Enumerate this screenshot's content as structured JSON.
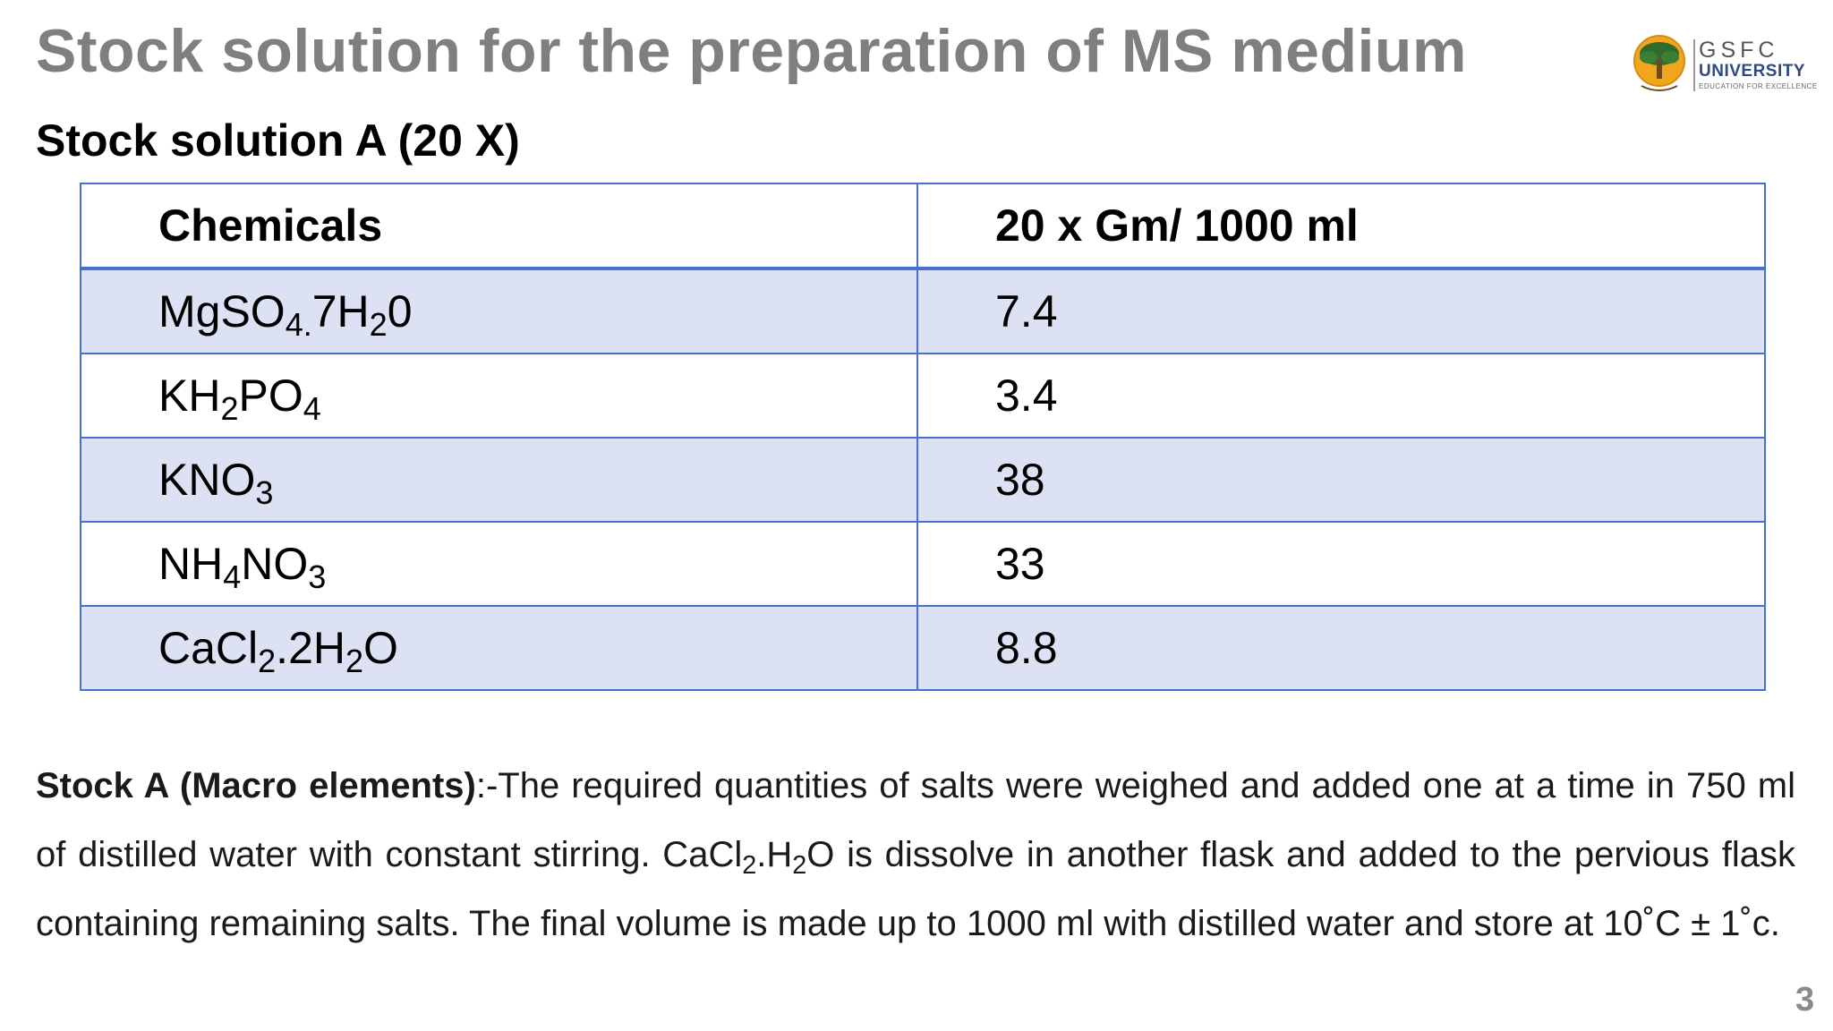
{
  "title": "Stock solution for the preparation of MS medium",
  "logo": {
    "name": "GSFC",
    "sub": "UNIVERSITY",
    "tagline": "EDUCATION FOR EXCELLENCE",
    "colors": {
      "sun": "#f0a71f",
      "tree": "#2f6b2a",
      "text": "#2e4a80"
    }
  },
  "subtitle": "Stock solution A (20 X)",
  "table": {
    "headers": [
      "Chemicals",
      "20 x Gm/ 1000 ml"
    ],
    "rows": [
      {
        "chemical": {
          "parts": [
            [
              "MgSO",
              ""
            ],
            [
              "4.",
              "sub"
            ],
            [
              "7H",
              ""
            ],
            [
              "2",
              "sub"
            ],
            [
              "0",
              ""
            ]
          ]
        },
        "value": "7.4"
      },
      {
        "chemical": {
          "parts": [
            [
              "KH",
              ""
            ],
            [
              "2",
              "sub"
            ],
            [
              "PO",
              ""
            ],
            [
              "4",
              "sub"
            ]
          ]
        },
        "value": "3.4"
      },
      {
        "chemical": {
          "parts": [
            [
              "KNO",
              ""
            ],
            [
              "3",
              "sub"
            ]
          ]
        },
        "value": "38"
      },
      {
        "chemical": {
          "parts": [
            [
              "NH",
              ""
            ],
            [
              "4",
              "sub"
            ],
            [
              "NO",
              ""
            ],
            [
              "3",
              "sub"
            ]
          ]
        },
        "value": "33"
      },
      {
        "chemical": {
          "parts": [
            [
              "CaCl",
              ""
            ],
            [
              "2",
              "sub"
            ],
            [
              ".2H",
              ""
            ],
            [
              "2",
              "sub"
            ],
            [
              "O",
              ""
            ]
          ]
        },
        "value": "8.8"
      }
    ],
    "colors": {
      "border": "#4a6fcf",
      "band": "#dce2f3"
    }
  },
  "paragraph": {
    "lead": "Stock A (Macro elements)",
    "parts": [
      [
        ":-The required quantities of salts were weighed and added one at a time in 750 ml of distilled water with constant stirring. CaCl",
        ""
      ],
      [
        "2",
        "sub"
      ],
      [
        ".H",
        ""
      ],
      [
        "2",
        "sub"
      ],
      [
        "O is dissolve in another flask and added to the pervious flask containing remaining salts. The final volume is made up to 1000 ml with distilled water and store at 10˚C ± 1˚c.",
        ""
      ]
    ]
  },
  "page_number": "3"
}
